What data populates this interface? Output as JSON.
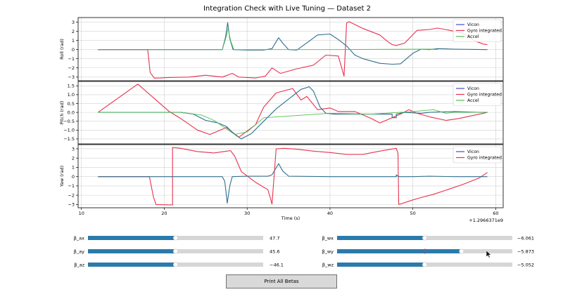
{
  "window": {
    "title": "Integration Check with Live Tuning — Dataset 2"
  },
  "colors": {
    "vicon": "#4a4ad6",
    "gyro": "#e8314f",
    "accel": "#4fbf4f",
    "overlap": "#2e6f8e",
    "slider": "#2a7bab",
    "track": "#d6d6d6"
  },
  "chart_data": [
    {
      "type": "line",
      "title": "Integration Check with Live Tuning — Dataset 2",
      "ylabel": "Roll (rad)",
      "xlabel": "",
      "xlim": [
        9.6,
        60.9
      ],
      "ylim": [
        -3.4,
        3.5
      ],
      "yticks": [
        3,
        2,
        1,
        0,
        -1,
        -2,
        -3
      ],
      "legend": [
        "Vicon",
        "Gyro integrated",
        "Accel"
      ],
      "legend_position": "top-right",
      "grid": true,
      "series": [
        {
          "name": "Gyro integrated",
          "color_key": "gyro",
          "x": [
            12,
            16.5,
            18,
            18.3,
            18.8,
            19.5,
            20.5,
            23,
            25,
            27,
            28.2,
            29,
            31,
            32.2,
            33,
            34,
            36,
            38,
            39.5,
            41,
            41.7,
            42,
            42.3,
            44,
            46,
            47,
            47.5,
            48,
            49,
            50.5,
            52,
            53,
            54.5,
            56,
            57.5,
            58.5,
            59
          ],
          "y": [
            0,
            0,
            0,
            -2.5,
            -3.12,
            -3.1,
            -3.05,
            -3.0,
            -2.8,
            -3.0,
            -2.6,
            -3.0,
            -3.1,
            -2.9,
            -2.0,
            -2.6,
            -2.1,
            -1.7,
            -0.6,
            -0.7,
            -2.9,
            2.9,
            3.05,
            2.3,
            1.6,
            0.85,
            0.55,
            0.45,
            0.7,
            2.1,
            2.2,
            2.35,
            2.1,
            1.8,
            0.95,
            0.6,
            0.55
          ]
        },
        {
          "name": "Vicon",
          "color_key": "vicon",
          "x": [
            12,
            27,
            27.4,
            27.65,
            27.9,
            28.3,
            30,
            32,
            33,
            33.8,
            34.3,
            35,
            36,
            37,
            38.5,
            40,
            41,
            42,
            43,
            44,
            46,
            47.5,
            48.5,
            50,
            51,
            52,
            53,
            55,
            59
          ],
          "y": [
            0,
            0,
            1.4,
            2.95,
            1.2,
            0,
            -0.05,
            -0.05,
            0.1,
            1.3,
            0.7,
            0,
            -0.05,
            0.6,
            1.6,
            1.7,
            1.1,
            0.4,
            -0.6,
            -1.0,
            -1.5,
            -1.6,
            -1.55,
            -0.4,
            0.05,
            0.0,
            0.1,
            0.05,
            0.0
          ]
        },
        {
          "name": "Accel",
          "color_key": "accel",
          "x": [
            12,
            27,
            27.5,
            27.7,
            28,
            28.4,
            40,
            52,
            53
          ],
          "y": [
            0,
            0,
            1.5,
            2.3,
            1.0,
            0,
            0.0,
            0.05,
            0.0
          ]
        }
      ]
    },
    {
      "type": "line",
      "ylabel": "Pitch (rad)",
      "xlim": [
        9.6,
        60.9
      ],
      "ylim": [
        -1.78,
        1.75
      ],
      "yticks": [
        1.5,
        1.0,
        0.5,
        0.0,
        -0.5,
        -1.0,
        -1.5
      ],
      "legend": [
        "Vicon",
        "Gyro integrated",
        "Accel"
      ],
      "legend_position": "top-right",
      "grid": true,
      "series": [
        {
          "name": "Gyro integrated",
          "color_key": "gyro",
          "x": [
            12,
            16.8,
            20.6,
            22,
            24,
            25.5,
            27.5,
            29,
            31,
            32,
            33.5,
            35.5,
            36.5,
            37.2,
            38.5,
            40,
            41,
            43,
            45,
            46,
            47,
            48.5,
            49.5,
            50.5,
            52,
            54,
            55.5,
            57.5,
            59
          ],
          "y": [
            0,
            1.6,
            0.05,
            -0.35,
            -1.0,
            -1.25,
            -0.85,
            -1.4,
            -0.7,
            0.3,
            1.1,
            1.35,
            0.7,
            0.9,
            0.15,
            0.25,
            0.05,
            0.05,
            -0.35,
            -0.6,
            -0.4,
            -0.1,
            0.15,
            -0.05,
            -0.25,
            -0.45,
            -0.35,
            -0.15,
            0.0
          ]
        },
        {
          "name": "Vicon",
          "color_key": "vicon",
          "x": [
            12,
            22,
            23.5,
            25,
            26.5,
            27.5,
            28.5,
            29.3,
            30.5,
            32,
            33.5,
            35,
            36.5,
            37.5,
            38,
            38.8,
            39.5,
            40.5,
            45,
            47.5,
            47.5,
            48,
            48,
            49,
            51,
            52,
            55,
            58,
            59
          ],
          "y": [
            0,
            0,
            -0.1,
            -0.45,
            -0.6,
            -0.8,
            -1.25,
            -1.5,
            -1.2,
            -0.5,
            0.2,
            0.75,
            1.3,
            1.45,
            1.2,
            0.3,
            -0.05,
            -0.1,
            -0.1,
            -0.1,
            -0.3,
            -0.3,
            -0.1,
            0.0,
            -0.05,
            0.0,
            0.05,
            0.0,
            0.0
          ]
        },
        {
          "name": "Accel",
          "color_key": "accel",
          "x": [
            12,
            22,
            24.5,
            26,
            28.5,
            30,
            32,
            40,
            45,
            50,
            52.5,
            54,
            55,
            59
          ],
          "y": [
            0,
            0,
            -0.15,
            -0.45,
            -1.25,
            -1.1,
            -0.3,
            -0.05,
            -0.1,
            0.05,
            0.15,
            -0.05,
            0.0,
            0.0
          ]
        }
      ]
    },
    {
      "type": "line",
      "ylabel": "Yaw (rad)",
      "xlabel": "Time (s)",
      "xlim": [
        9.6,
        60.9
      ],
      "ylim": [
        -3.35,
        3.45
      ],
      "yticks": [
        3,
        2,
        1,
        0,
        -1,
        -2,
        -3
      ],
      "xticks": [
        10,
        20,
        30,
        40,
        50,
        60
      ],
      "offset_label": "+1.2966371e9",
      "legend": [
        "Vicon",
        "Gyro integrated"
      ],
      "legend_position": "top-right",
      "grid": true,
      "series": [
        {
          "name": "Gyro integrated",
          "color_key": "gyro",
          "x": [
            12,
            18.2,
            18.7,
            19,
            21,
            21,
            22,
            24,
            26,
            28,
            28.5,
            29.3,
            31,
            32.5,
            32.8,
            33,
            33.5,
            34.5,
            36,
            38,
            40,
            42,
            44,
            46,
            48,
            48.2,
            48.3,
            49,
            50,
            51,
            52.5,
            54,
            56,
            58,
            59
          ],
          "y": [
            0,
            0,
            -2.2,
            -3.0,
            -3.05,
            3.15,
            3.05,
            2.7,
            2.55,
            2.8,
            2.2,
            0.55,
            -0.6,
            -1.4,
            -2.3,
            -2.95,
            3.0,
            3.05,
            2.95,
            2.75,
            2.6,
            2.4,
            2.4,
            2.75,
            3.05,
            2.5,
            -3.0,
            -2.8,
            -2.5,
            -2.25,
            -1.9,
            -1.45,
            -0.85,
            -0.15,
            0.45
          ]
        },
        {
          "name": "Vicon",
          "color_key": "vicon",
          "x": [
            12,
            27,
            27.3,
            27.6,
            27.9,
            28.2,
            30,
            32.5,
            33,
            33.8,
            34.3,
            35,
            40,
            45,
            48,
            48,
            48.3,
            50,
            52,
            55,
            59
          ],
          "y": [
            0,
            0,
            -0.5,
            -2.85,
            -1.0,
            0,
            0.05,
            0.05,
            0.2,
            1.4,
            0.6,
            0.05,
            0.0,
            0.0,
            0.0,
            0.2,
            0.0,
            0.0,
            0.05,
            0.0,
            0.0
          ]
        }
      ]
    }
  ],
  "sliders": [
    {
      "label": "β_ax",
      "value": "47.7",
      "fraction": 0.5
    },
    {
      "label": "β_ay",
      "value": "45.6",
      "fraction": 0.5
    },
    {
      "label": "β_az",
      "value": "−46.1",
      "fraction": 0.5
    },
    {
      "label": "β_wx",
      "value": "−6.061",
      "fraction": 0.5
    },
    {
      "label": "β_wy",
      "value": "−5.873",
      "fraction": 0.71
    },
    {
      "label": "β_wz",
      "value": "−5.052",
      "fraction": 0.5
    }
  ],
  "buttons": {
    "print_betas": "Print All Betas"
  }
}
